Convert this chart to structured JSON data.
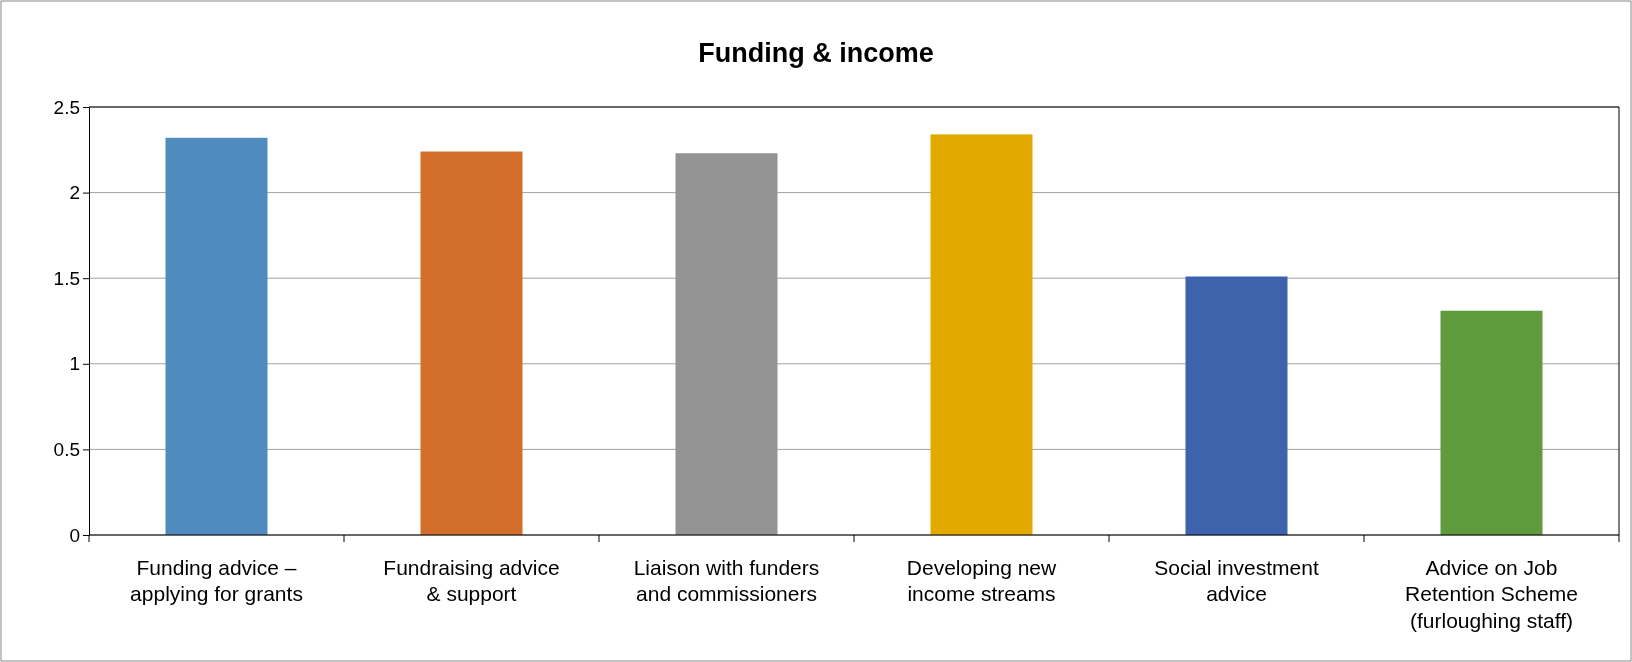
{
  "chart_data": {
    "type": "bar",
    "title": "Funding & income",
    "categories": [
      "Funding advice – applying for grants",
      "Fundraising advice & support",
      "Liaison with funders and commissioners",
      "Developing new income streams",
      "Social investment advice",
      "Advice on Job Retention Scheme (furloughing staff)"
    ],
    "values": [
      2.32,
      2.24,
      2.23,
      2.34,
      1.51,
      1.31
    ],
    "colors": [
      "#4f8bbd",
      "#d46e2b",
      "#939393",
      "#e2aa00",
      "#3c63ab",
      "#5f9a3d"
    ],
    "ylim": [
      0,
      2.5
    ],
    "yticks": [
      0,
      0.5,
      1,
      1.5,
      2,
      2.5
    ],
    "grid": "y"
  }
}
